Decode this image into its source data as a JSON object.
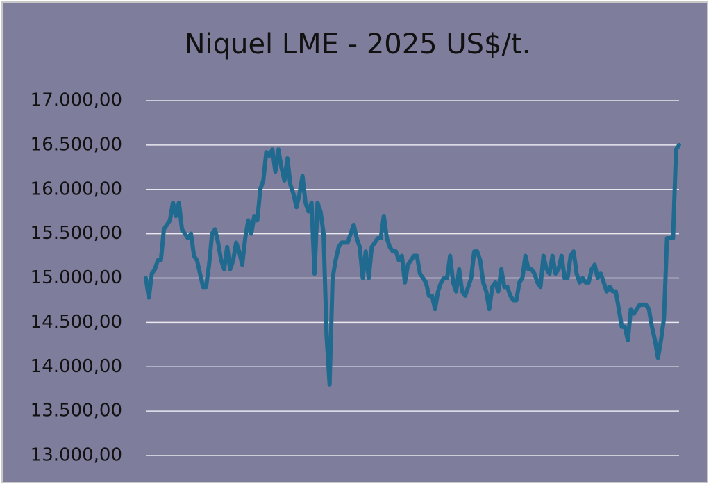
{
  "chart_data": {
    "type": "line",
    "title": "Niquel LME - 2025 US$/t.",
    "color": "#1f6a8e",
    "grid": true,
    "ylim": [
      13000,
      17000
    ],
    "yticks": [
      {
        "value": 13000,
        "label": "13.000,00"
      },
      {
        "value": 13500,
        "label": "13.500,00"
      },
      {
        "value": 14000,
        "label": "14.000,00"
      },
      {
        "value": 14500,
        "label": "14.500,00"
      },
      {
        "value": 15000,
        "label": "15.000,00"
      },
      {
        "value": 15500,
        "label": "15.500,00"
      },
      {
        "value": 16000,
        "label": "16.000,00"
      },
      {
        "value": 16500,
        "label": "16.500,00"
      },
      {
        "value": 17000,
        "label": "17.000,00"
      }
    ],
    "values": [
      15000,
      14780,
      15050,
      15100,
      15200,
      15200,
      15550,
      15600,
      15650,
      15850,
      15700,
      15850,
      15550,
      15500,
      15450,
      15500,
      15250,
      15200,
      15050,
      14900,
      14900,
      15150,
      15500,
      15550,
      15400,
      15200,
      15100,
      15350,
      15100,
      15200,
      15400,
      15300,
      15150,
      15450,
      15650,
      15500,
      15700,
      15650,
      16000,
      16100,
      16420,
      16380,
      16450,
      16200,
      16450,
      16250,
      16100,
      16350,
      16050,
      15950,
      15800,
      15950,
      16150,
      15850,
      15750,
      15850,
      15050,
      15850,
      15750,
      15500,
      14350,
      13800,
      15000,
      15200,
      15350,
      15400,
      15400,
      15400,
      15500,
      15600,
      15450,
      15350,
      15000,
      15300,
      15000,
      15350,
      15400,
      15450,
      15450,
      15700,
      15450,
      15350,
      15300,
      15300,
      15200,
      15250,
      14950,
      15150,
      15200,
      15250,
      15250,
      15050,
      15000,
      14950,
      14800,
      14800,
      14650,
      14850,
      14950,
      15000,
      15000,
      15250,
      14950,
      14850,
      15100,
      14850,
      14800,
      14900,
      15000,
      15300,
      15300,
      15200,
      14950,
      14850,
      14650,
      14900,
      14950,
      14850,
      15100,
      14900,
      14900,
      14800,
      14750,
      14750,
      14950,
      15000,
      15250,
      15100,
      15100,
      15050,
      14950,
      14900,
      15250,
      15100,
      15050,
      15250,
      15050,
      15100,
      15250,
      15000,
      15000,
      15250,
      15300,
      15050,
      14950,
      15000,
      14950,
      14950,
      15100,
      15150,
      15000,
      15050,
      14950,
      14850,
      14900,
      14850,
      14850,
      14650,
      14450,
      14450,
      14300,
      14650,
      14600,
      14650,
      14700,
      14700,
      14700,
      14650,
      14450,
      14300,
      14100,
      14300,
      14550,
      15450,
      15450,
      15450,
      16450,
      16500
    ]
  }
}
